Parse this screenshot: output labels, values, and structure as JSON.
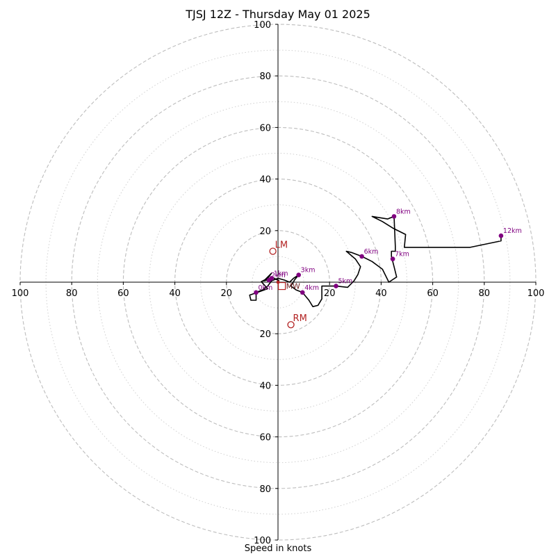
{
  "chart_data": {
    "type": "line",
    "chart_kind": "hodograph",
    "title": "TJSJ 12Z - Thursday May 01 2025",
    "xlabel": "Speed in knots",
    "ylabel": "",
    "xlim": [
      -100,
      100
    ],
    "ylim": [
      -100,
      100
    ],
    "axis_units": "knots",
    "axis_tick_values": [
      100,
      80,
      60,
      40,
      20
    ],
    "ring_dashed_values": [
      20,
      40,
      60,
      80,
      100
    ],
    "ring_dotted_values": [
      10,
      30,
      50,
      70,
      90
    ],
    "grid": true,
    "colors": {
      "trace": "#000000",
      "height_marker": "#800080",
      "storm_motion": "#b22222",
      "ring_dashed": "#bdbdbd",
      "ring_dotted": "#cfcfcf",
      "axis": "#000000"
    },
    "series": [
      {
        "points": [
          {
            "x": 0.5,
            "y": 0.5
          },
          {
            "x": -1.5,
            "y": 1.5
          },
          {
            "x": -3.5,
            "y": 1.0
          },
          {
            "x": -5.5,
            "y": 0.5
          },
          {
            "x": -4.0,
            "y": 2.0
          },
          {
            "x": -2.5,
            "y": 3.5
          },
          {
            "x": -4.0,
            "y": 1.5
          },
          {
            "x": -6.5,
            "y": 0.2
          },
          {
            "x": -4.0,
            "y": -2.5
          },
          {
            "x": -8.0,
            "y": -4.0
          },
          {
            "x": -11.0,
            "y": -5.0
          },
          {
            "x": -10.5,
            "y": -7.0
          },
          {
            "x": -8.5,
            "y": -7.0
          },
          {
            "x": -8.5,
            "y": -4.0
          },
          {
            "x": -6.0,
            "y": -3.0
          },
          {
            "x": -4.0,
            "y": -1.5
          },
          {
            "x": -2.5,
            "y": 0.5
          },
          {
            "x": 0.0,
            "y": 1.5
          },
          {
            "x": 2.5,
            "y": 0.8
          },
          {
            "x": 4.5,
            "y": 0.0
          },
          {
            "x": 6.0,
            "y": 1.5
          },
          {
            "x": 8.0,
            "y": 2.8
          },
          {
            "x": 6.5,
            "y": 1.0
          },
          {
            "x": 5.0,
            "y": -1.5
          },
          {
            "x": 7.0,
            "y": -3.0
          },
          {
            "x": 9.5,
            "y": -4.0
          },
          {
            "x": 12.0,
            "y": -7.0
          },
          {
            "x": 13.5,
            "y": -9.5
          },
          {
            "x": 15.5,
            "y": -9.0
          },
          {
            "x": 17.0,
            "y": -6.5
          },
          {
            "x": 17.0,
            "y": -1.5
          },
          {
            "x": 22.5,
            "y": -1.5
          },
          {
            "x": 27.0,
            "y": -2.0
          },
          {
            "x": 29.5,
            "y": 0.5
          },
          {
            "x": 31.0,
            "y": 3.0
          },
          {
            "x": 32.0,
            "y": 6.0
          },
          {
            "x": 30.0,
            "y": 9.0
          },
          {
            "x": 26.5,
            "y": 12.0
          },
          {
            "x": 28.5,
            "y": 11.5
          },
          {
            "x": 32.5,
            "y": 10.0
          },
          {
            "x": 36.5,
            "y": 8.0
          },
          {
            "x": 40.5,
            "y": 5.0
          },
          {
            "x": 43.0,
            "y": 0.0
          },
          {
            "x": 46.0,
            "y": 2.0
          },
          {
            "x": 45.0,
            "y": 6.0
          },
          {
            "x": 44.0,
            "y": 10.0
          },
          {
            "x": 44.0,
            "y": 12.0
          },
          {
            "x": 45.5,
            "y": 12.0
          },
          {
            "x": 45.5,
            "y": 14.0
          },
          {
            "x": 45.0,
            "y": 25.5
          },
          {
            "x": 42.5,
            "y": 24.5
          },
          {
            "x": 36.5,
            "y": 25.5
          },
          {
            "x": 40.5,
            "y": 23.5
          },
          {
            "x": 44.5,
            "y": 21.0
          },
          {
            "x": 49.5,
            "y": 18.5
          },
          {
            "x": 49.0,
            "y": 13.5
          },
          {
            "x": 74.5,
            "y": 13.5
          },
          {
            "x": 86.5,
            "y": 16.0
          },
          {
            "x": 86.5,
            "y": 18.0
          }
        ]
      }
    ],
    "height_markers": [
      {
        "label": "0km",
        "x": -8.5,
        "y": -4.0
      },
      {
        "label": "1km",
        "x": -2.5,
        "y": 1.5
      },
      {
        "label": "2km",
        "x": -3.5,
        "y": 0.8
      },
      {
        "label": "3km",
        "x": 8.0,
        "y": 2.8
      },
      {
        "label": "4km",
        "x": 9.5,
        "y": -4.0
      },
      {
        "label": "5km",
        "x": 22.5,
        "y": -1.5
      },
      {
        "label": "6km",
        "x": 32.5,
        "y": 10.0
      },
      {
        "label": "7km",
        "x": 44.5,
        "y": 9.0
      },
      {
        "label": "8km",
        "x": 45.0,
        "y": 25.5
      },
      {
        "label": "12km",
        "x": 86.5,
        "y": 18.0
      }
    ],
    "storm_motion": {
      "lm": {
        "label": "LM",
        "x": -2.0,
        "y": 12.0
      },
      "rm": {
        "label": "RM",
        "x": 5.0,
        "y": -16.5
      },
      "mw": {
        "label": "MW",
        "x": 1.5,
        "y": -1.5
      },
      "mean_marker": {
        "x": 0.0,
        "y": 0.0
      }
    }
  }
}
